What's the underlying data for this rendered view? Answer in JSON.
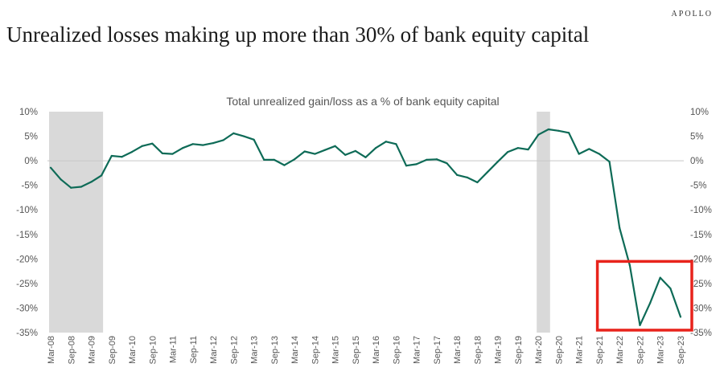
{
  "header": {
    "brand": "APOLLO",
    "title": "Unrealized losses making up more than 30% of bank equity capital"
  },
  "colors": {
    "line": "#0e6b57",
    "recession_shading": "#d9d9d9",
    "highlight_box": "#e8231c"
  },
  "chart_data": {
    "type": "line",
    "title": "Total unrealized gain/loss as a % of bank equity capital",
    "xlabel": "",
    "ylabel": "",
    "ylim": [
      -35,
      10
    ],
    "yticks": [
      10,
      5,
      0,
      -5,
      -10,
      -15,
      -20,
      -25,
      -30,
      -35
    ],
    "ytick_labels": [
      "10%",
      "5%",
      "0%",
      "-5%",
      "-10%",
      "-15%",
      "-20%",
      "-25%",
      "-30%",
      "-35%"
    ],
    "secondary_y_axis": true,
    "grid": false,
    "x_tick_labels": [
      "Mar-08",
      "Sep-08",
      "Mar-09",
      "Sep-09",
      "Mar-10",
      "Sep-10",
      "Mar-11",
      "Sep-11",
      "Mar-12",
      "Sep-12",
      "Mar-13",
      "Sep-13",
      "Mar-14",
      "Sep-14",
      "Mar-15",
      "Sep-15",
      "Mar-16",
      "Sep-16",
      "Mar-17",
      "Sep-17",
      "Mar-18",
      "Sep-18",
      "Mar-19",
      "Sep-19",
      "Mar-20",
      "Sep-20",
      "Mar-21",
      "Sep-21",
      "Mar-22",
      "Sep-22",
      "Mar-23",
      "Sep-23"
    ],
    "x": [
      "Mar-08",
      "Jun-08",
      "Sep-08",
      "Dec-08",
      "Mar-09",
      "Jun-09",
      "Sep-09",
      "Dec-09",
      "Mar-10",
      "Jun-10",
      "Sep-10",
      "Dec-10",
      "Mar-11",
      "Jun-11",
      "Sep-11",
      "Dec-11",
      "Mar-12",
      "Jun-12",
      "Sep-12",
      "Dec-12",
      "Mar-13",
      "Jun-13",
      "Sep-13",
      "Dec-13",
      "Mar-14",
      "Jun-14",
      "Sep-14",
      "Dec-14",
      "Mar-15",
      "Jun-15",
      "Sep-15",
      "Dec-15",
      "Mar-16",
      "Jun-16",
      "Sep-16",
      "Dec-16",
      "Mar-17",
      "Jun-17",
      "Sep-17",
      "Dec-17",
      "Mar-18",
      "Jun-18",
      "Sep-18",
      "Dec-18",
      "Mar-19",
      "Jun-19",
      "Sep-19",
      "Dec-19",
      "Mar-20",
      "Jun-20",
      "Sep-20",
      "Dec-20",
      "Mar-21",
      "Jun-21",
      "Sep-21",
      "Dec-21",
      "Mar-22",
      "Jun-22",
      "Sep-22",
      "Dec-22",
      "Mar-23",
      "Jun-23",
      "Sep-23"
    ],
    "series": [
      {
        "values": [
          -1.4,
          -3.8,
          -5.5,
          -5.3,
          -4.3,
          -3.0,
          1.0,
          0.8,
          1.8,
          3.0,
          3.5,
          1.5,
          1.4,
          2.6,
          3.4,
          3.2,
          3.6,
          4.2,
          5.6,
          5.0,
          4.3,
          0.2,
          0.2,
          -0.9,
          0.3,
          1.9,
          1.4,
          2.2,
          3.0,
          1.2,
          2.0,
          0.7,
          2.6,
          3.9,
          3.4,
          -1.0,
          -0.7,
          0.2,
          0.3,
          -0.5,
          -2.9,
          -3.4,
          -4.4,
          -2.3,
          -0.2,
          1.8,
          2.6,
          2.3,
          5.3,
          6.4,
          6.1,
          5.7,
          1.4,
          2.4,
          1.4,
          -0.2,
          -13.7,
          -21.3,
          -33.5,
          -29.0,
          -23.8,
          -26.0,
          -31.8
        ]
      }
    ],
    "shaded_periods": [
      {
        "start": "Mar-08",
        "end": "Jun-09"
      },
      {
        "start": "Mar-20",
        "end": "Jun-20"
      }
    ],
    "highlight_box": {
      "start": "Dec-21",
      "end": "Sep-23",
      "y_top": -20.5,
      "y_bottom": -34.5
    }
  }
}
